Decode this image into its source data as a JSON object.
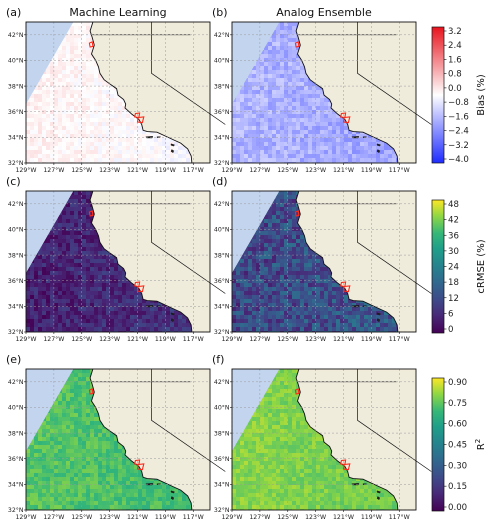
{
  "figure": {
    "panels": [
      {
        "id": "a",
        "label": "(a)",
        "title": "Machine Learning",
        "row": 0,
        "col": 0,
        "palette": "bias",
        "level": 0.53,
        "spread": 0.04,
        "seed": 11
      },
      {
        "id": "b",
        "label": "(b)",
        "title": "Analog Ensemble",
        "row": 0,
        "col": 1,
        "palette": "bias",
        "level": 0.33,
        "spread": 0.07,
        "seed": 23
      },
      {
        "id": "c",
        "label": "(c)",
        "title": "",
        "row": 1,
        "col": 0,
        "palette": "viridis",
        "level": 0.1,
        "spread": 0.1,
        "seed": 37
      },
      {
        "id": "d",
        "label": "(d)",
        "title": "",
        "row": 1,
        "col": 1,
        "palette": "viridis",
        "level": 0.24,
        "spread": 0.15,
        "seed": 41
      },
      {
        "id": "e",
        "label": "(e)",
        "title": "",
        "row": 2,
        "col": 0,
        "palette": "viridis",
        "level": 0.8,
        "spread": 0.06,
        "seed": 53
      },
      {
        "id": "f",
        "label": "(f)",
        "title": "",
        "row": 2,
        "col": 1,
        "palette": "viridis",
        "level": 0.87,
        "spread": 0.05,
        "seed": 67
      }
    ],
    "lat_ticks": [
      "42°N",
      "40°N",
      "38°N",
      "36°N",
      "34°N",
      "32°N"
    ],
    "lon_ticks": [
      "129°W",
      "127°W",
      "125°W",
      "123°W",
      "121°W",
      "119°W",
      "117°W"
    ],
    "colorbars": [
      {
        "id": "bias",
        "label": "Bias (%)",
        "palette": "bias",
        "ticks": [
          "3.2",
          "2.4",
          "1.6",
          "0.8",
          "0.0",
          "−0.8",
          "−1.6",
          "−2.4",
          "−3.2",
          "−4.0"
        ]
      },
      {
        "id": "crmse",
        "label": "cRMSE (%)",
        "palette": "viridis",
        "ticks": [
          "48",
          "42",
          "36",
          "30",
          "24",
          "18",
          "12",
          "6",
          "0"
        ]
      },
      {
        "id": "r2",
        "label": "R",
        "label_sup": "2",
        "palette": "viridis",
        "ticks": [
          "0.90",
          "0.75",
          "0.60",
          "0.45",
          "0.30",
          "0.15",
          "0.00"
        ]
      }
    ],
    "colors": {
      "land": "#efecdc",
      "ocean": "#c3d5ee",
      "coast": "#111111",
      "outline_marker": "#ff2a1a",
      "grid": "#9a9a9a"
    }
  }
}
